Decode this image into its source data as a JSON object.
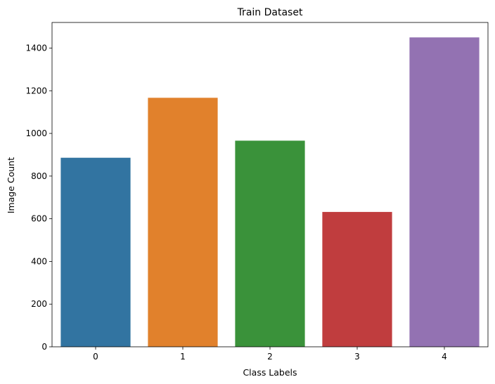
{
  "chart_data": {
    "type": "bar",
    "title": "Train Dataset",
    "xlabel": "Class Labels",
    "ylabel": "Image Count",
    "categories": [
      "0",
      "1",
      "2",
      "3",
      "4"
    ],
    "values": [
      886,
      1167,
      966,
      632,
      1450
    ],
    "colors": [
      "#3274a1",
      "#e1812c",
      "#3a923a",
      "#c03d3e",
      "#9372b2"
    ],
    "ylim": [
      0,
      1520
    ],
    "yticks": [
      0,
      200,
      400,
      600,
      800,
      1000,
      1200,
      1400
    ],
    "grid": false,
    "legend": "none"
  }
}
